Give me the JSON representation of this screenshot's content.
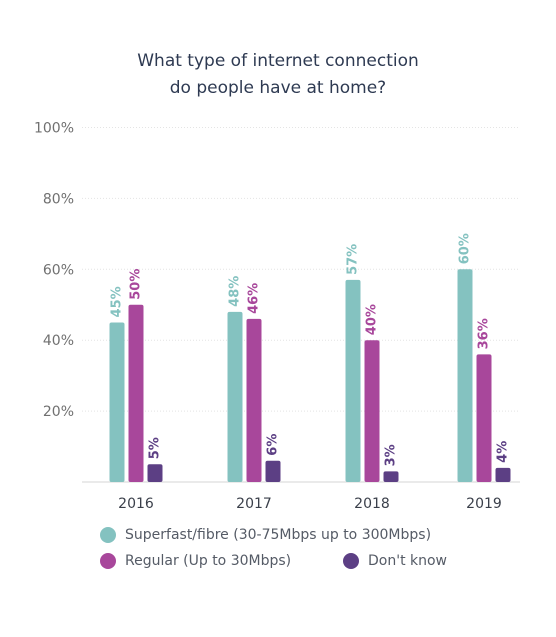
{
  "title": {
    "line1": "What type of internet connection",
    "line2": "do people have at home?"
  },
  "colors": {
    "superfast": "#84c2c0",
    "regular": "#a8479b",
    "dont_know": "#5c3f84",
    "grid": "#e4e4e4",
    "axis_text": "#707070",
    "baseline": "#d6d6d6"
  },
  "chart_data": {
    "type": "bar",
    "title": "What type of internet connection do people have at home?",
    "categories": [
      "2016",
      "2017",
      "2018",
      "2019"
    ],
    "series": [
      {
        "name": "Superfast/fibre (30-75Mbps up to 300Mbps)",
        "values": [
          45,
          48,
          57,
          60
        ],
        "labels": [
          "45%",
          "48%",
          "57%",
          "60%"
        ]
      },
      {
        "name": "Regular (Up to 30Mbps)",
        "values": [
          50,
          46,
          40,
          36
        ],
        "labels": [
          "50%",
          "46%",
          "40%",
          "36%"
        ]
      },
      {
        "name": "Don't know",
        "values": [
          5,
          6,
          3,
          4
        ],
        "labels": [
          "5%",
          "6%",
          "3%",
          "4%"
        ]
      }
    ],
    "ylim": [
      0,
      100
    ],
    "yticks": [
      20,
      40,
      60,
      80,
      100
    ],
    "ytick_labels": [
      "20%",
      "40%",
      "60%",
      "80%",
      "100%"
    ],
    "grid": true,
    "legend_position": "bottom"
  }
}
